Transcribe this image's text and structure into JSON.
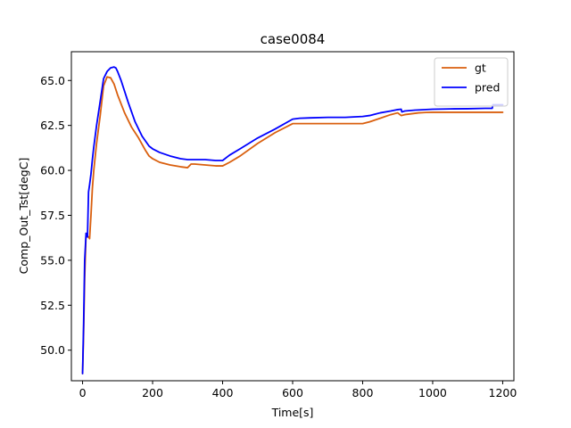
{
  "chart_data": {
    "type": "line",
    "title": "case0084",
    "xlabel": "Time[s]",
    "ylabel": "Comp_Out_Tst[degC]",
    "xlim": [
      -32,
      1232
    ],
    "ylim": [
      48.3,
      66.6
    ],
    "xticks": [
      0,
      200,
      400,
      600,
      800,
      1000,
      1200
    ],
    "yticks": [
      50.0,
      52.5,
      55.0,
      57.5,
      60.0,
      62.5,
      65.0
    ],
    "xtick_labels": [
      "0",
      "200",
      "400",
      "600",
      "800",
      "1000",
      "1200"
    ],
    "ytick_labels": [
      "50.0",
      "52.5",
      "55.0",
      "57.5",
      "60.0",
      "62.5",
      "65.0"
    ],
    "grid": false,
    "legend_position": "top-right",
    "series": [
      {
        "name": "gt",
        "color": "#d95f0e",
        "x": [
          0,
          3,
          6,
          10,
          14,
          17,
          20,
          24,
          28,
          32,
          40,
          50,
          60,
          70,
          80,
          90,
          100,
          120,
          140,
          160,
          180,
          190,
          200,
          220,
          250,
          280,
          300,
          310,
          320,
          350,
          380,
          400,
          420,
          450,
          500,
          550,
          600,
          620,
          650,
          700,
          750,
          800,
          820,
          850,
          880,
          900,
          910,
          920,
          940,
          960,
          980,
          1000,
          1050,
          1100,
          1150,
          1200
        ],
        "y": [
          48.7,
          51.0,
          54.0,
          56.5,
          56.3,
          56.3,
          56.2,
          57.5,
          59.0,
          60.0,
          61.5,
          63.0,
          64.7,
          65.2,
          65.15,
          64.8,
          64.2,
          63.2,
          62.4,
          61.8,
          61.1,
          60.8,
          60.65,
          60.45,
          60.3,
          60.2,
          60.15,
          60.35,
          60.35,
          60.3,
          60.25,
          60.25,
          60.45,
          60.8,
          61.5,
          62.1,
          62.6,
          62.6,
          62.6,
          62.6,
          62.6,
          62.6,
          62.7,
          62.9,
          63.1,
          63.2,
          63.05,
          63.1,
          63.15,
          63.2,
          63.22,
          63.23,
          63.23,
          63.23,
          63.23,
          63.23
        ]
      },
      {
        "name": "pred",
        "color": "#0000ff",
        "x": [
          0,
          3,
          6,
          10,
          14,
          17,
          20,
          24,
          28,
          32,
          40,
          50,
          60,
          70,
          80,
          90,
          95,
          100,
          110,
          130,
          150,
          170,
          190,
          200,
          220,
          250,
          280,
          300,
          320,
          350,
          380,
          400,
          420,
          450,
          500,
          550,
          600,
          620,
          650,
          700,
          750,
          800,
          820,
          850,
          880,
          900,
          910,
          912,
          920,
          950,
          1000,
          1050,
          1100,
          1150,
          1170,
          1172,
          1180,
          1200
        ],
        "y": [
          48.7,
          51.5,
          55.0,
          56.5,
          56.3,
          58.8,
          59.2,
          59.8,
          60.6,
          61.3,
          62.5,
          63.8,
          65.1,
          65.5,
          65.7,
          65.75,
          65.7,
          65.5,
          65.0,
          63.8,
          62.7,
          61.9,
          61.35,
          61.2,
          61.0,
          60.8,
          60.65,
          60.6,
          60.6,
          60.6,
          60.55,
          60.55,
          60.85,
          61.2,
          61.8,
          62.3,
          62.85,
          62.9,
          62.92,
          62.95,
          62.95,
          63.0,
          63.05,
          63.2,
          63.3,
          63.38,
          63.4,
          63.25,
          63.3,
          63.35,
          63.4,
          63.42,
          63.43,
          63.45,
          63.45,
          63.65,
          63.65,
          63.65
        ]
      }
    ]
  }
}
